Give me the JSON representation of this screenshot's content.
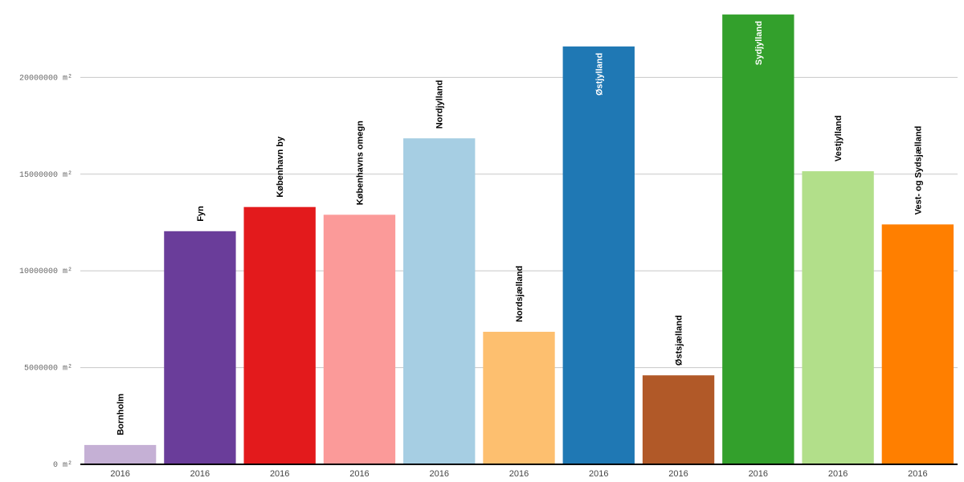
{
  "chart_data": {
    "type": "bar",
    "title": "",
    "xlabel": "",
    "ylabel": "",
    "y_unit": "m²",
    "ylim": [
      0,
      24000000
    ],
    "y_ticks": [
      0,
      5000000,
      10000000,
      15000000,
      20000000
    ],
    "y_tick_labels": [
      "0 m²",
      "5000000 m²",
      "10000000 m²",
      "15000000 m²",
      "20000000 m²"
    ],
    "grid": true,
    "legend": "none",
    "categories": [
      "2016",
      "2016",
      "2016",
      "2016",
      "2016",
      "2016",
      "2016",
      "2016",
      "2016",
      "2016",
      "2016"
    ],
    "series_labels": [
      "Bornholm",
      "Fyn",
      "København by",
      "Københavns omegn",
      "Nordjylland",
      "Nordsjælland",
      "Østjylland",
      "Østsjælland",
      "Sydjylland",
      "Vestjylland",
      "Vest- og Sydsjælland"
    ],
    "values": [
      1000000,
      12050000,
      13300000,
      12900000,
      16850000,
      6850000,
      21600000,
      4600000,
      23250000,
      15150000,
      12400000
    ],
    "colors": [
      "#c5b0d5",
      "#6a3d9a",
      "#e31a1c",
      "#fb9a99",
      "#a6cee3",
      "#fdbf6f",
      "#1f78b4",
      "#b15928",
      "#33a02c",
      "#b2df8a",
      "#ff7f00"
    ],
    "label_inside": [
      false,
      false,
      false,
      false,
      false,
      false,
      true,
      false,
      true,
      false,
      false
    ]
  }
}
